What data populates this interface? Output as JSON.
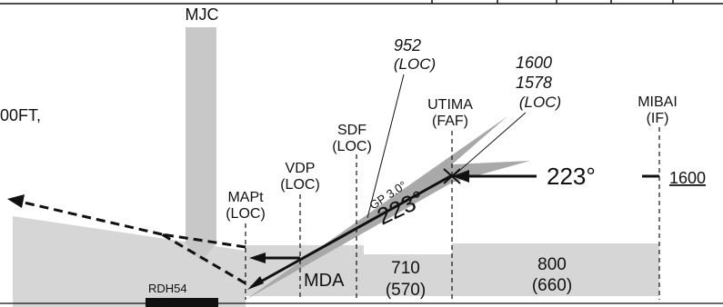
{
  "colors": {
    "terrain": "#d6d6d6",
    "glidepath": "#a9a9a9",
    "ink": "#111111"
  },
  "fixes": {
    "mjc": "MJC",
    "mapt": {
      "name": "MAPt",
      "type": "(LOC)"
    },
    "vdp": {
      "name": "VDP",
      "type": "(LOC)"
    },
    "sdf": {
      "name": "SDF",
      "type": "(LOC)"
    },
    "faf": {
      "name": "UTIMA",
      "type": "(FAF)"
    },
    "if": {
      "name": "MIBAI",
      "type": "(IF)"
    }
  },
  "altitudes": {
    "sdf_alt": "952",
    "sdf_src": "(LOC)",
    "faf_alt_1": "1600",
    "faf_alt_2": "1578",
    "faf_src": "(LOC)",
    "if_alt": "1600"
  },
  "course_large": "223°",
  "course_on_gp": "223°",
  "glidepath_label": "GP 3.0°",
  "mda_label": "MDA",
  "minima": [
    {
      "alt": "710",
      "hat": "(570)"
    },
    {
      "alt": "800",
      "hat": "(660)"
    }
  ],
  "rdh_label": "RDH54",
  "left_note": "00FT,"
}
